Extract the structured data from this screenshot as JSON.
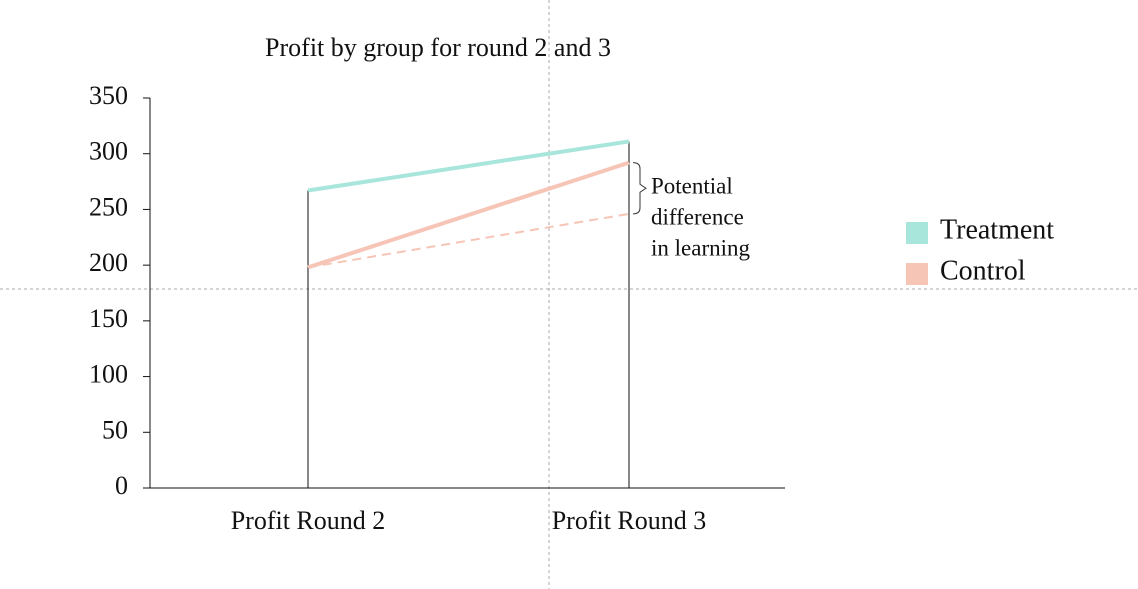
{
  "chart_data": {
    "type": "line",
    "title": "Profit by group for round 2 and 3",
    "categories": [
      "Profit Round 2",
      "Profit Round 3"
    ],
    "series": [
      {
        "name": "Treatment",
        "color": "#a8e6dc",
        "values": [
          267,
          311
        ]
      },
      {
        "name": "Control",
        "color": "#f6c5b6",
        "values": [
          198,
          292
        ]
      }
    ],
    "projection": {
      "color": "#f6c5b6",
      "values": [
        198,
        246
      ]
    },
    "annotation": [
      "Potential",
      "difference",
      "in learning"
    ],
    "ylim": [
      0,
      350
    ],
    "yticks": [
      0,
      50,
      100,
      150,
      200,
      250,
      300,
      350
    ],
    "legend": "right"
  }
}
